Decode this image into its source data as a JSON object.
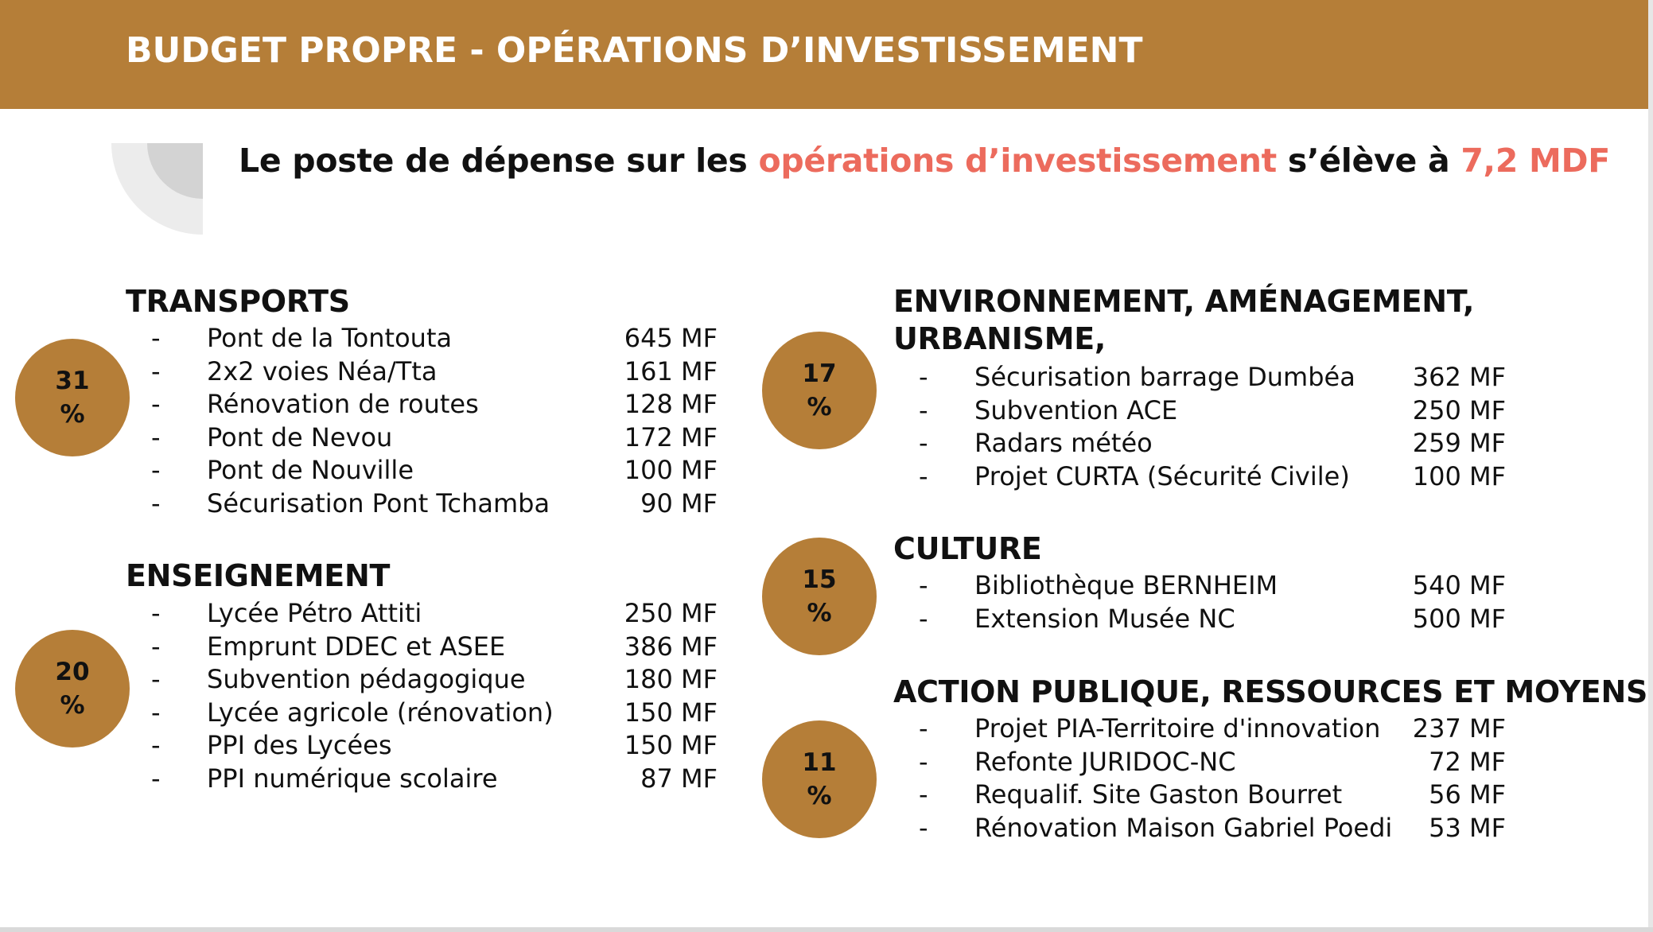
{
  "header": {
    "title": "BUDGET PROPRE - OPÉRATIONS D’INVESTISSEMENT"
  },
  "subtitle": {
    "prefix": "Le poste de dépense sur les ",
    "highlight": "opérations d’investissement",
    "middle": " s’élève à ",
    "total": "7,2 MDF"
  },
  "colors": {
    "accent": "#b57e38",
    "highlight": "#ec6b5d"
  },
  "sections": [
    {
      "title": "TRANSPORTS",
      "percent": "31",
      "percent_sign": "%",
      "items": [
        {
          "dash": "-",
          "label": "Pont de la Tontouta",
          "amount": "645 MF"
        },
        {
          "dash": "-",
          "label": "2x2 voies Néa/Tta",
          "amount": "161 MF"
        },
        {
          "dash": "-",
          "label": "Rénovation de routes",
          "amount": "128 MF"
        },
        {
          "dash": "-",
          "label": "Pont de Nevou",
          "amount": "172 MF"
        },
        {
          "dash": "-",
          "label": "Pont de Nouville",
          "amount": "100 MF"
        },
        {
          "dash": "-",
          "label": "Sécurisation Pont Tchamba",
          "amount": "90 MF"
        }
      ]
    },
    {
      "title": "ENSEIGNEMENT",
      "percent": "20",
      "percent_sign": "%",
      "items": [
        {
          "dash": "-",
          "label": "Lycée Pétro Attiti",
          "amount": "250 MF"
        },
        {
          "dash": "-",
          "label": "Emprunt DDEC et ASEE",
          "amount": "386 MF"
        },
        {
          "dash": "-",
          "label": "Subvention pédagogique",
          "amount": "180 MF"
        },
        {
          "dash": "-",
          "label": "Lycée agricole (rénovation)",
          "amount": "150 MF"
        },
        {
          "dash": "-",
          "label": "PPI des Lycées",
          "amount": "150 MF"
        },
        {
          "dash": "-",
          "label": "PPI numérique scolaire",
          "amount": "87 MF"
        }
      ]
    },
    {
      "title_line1": "ENVIRONNEMENT, AMÉNAGEMENT,",
      "title_line2": "URBANISME,",
      "percent": "17",
      "percent_sign": "%",
      "items": [
        {
          "dash": "-",
          "label": "Sécurisation barrage Dumbéa",
          "amount": "362 MF"
        },
        {
          "dash": "-",
          "label": "Subvention ACE",
          "amount": "250 MF"
        },
        {
          "dash": "-",
          "label": "Radars météo",
          "amount": "259 MF"
        },
        {
          "dash": "-",
          "label": "Projet CURTA (Sécurité Civile)",
          "amount": "100 MF"
        }
      ]
    },
    {
      "title": "CULTURE",
      "percent": "15",
      "percent_sign": "%",
      "items": [
        {
          "dash": "-",
          "label": "Bibliothèque BERNHEIM",
          "amount": "540 MF"
        },
        {
          "dash": "-",
          "label": "Extension Musée NC",
          "amount": "500 MF"
        }
      ]
    },
    {
      "title": "ACTION PUBLIQUE, RESSOURCES ET MOYENS",
      "percent": "11",
      "percent_sign": "%",
      "items": [
        {
          "dash": "-",
          "label": "Projet PIA-Territoire d'innovation",
          "amount": "237 MF"
        },
        {
          "dash": "-",
          "label": "Refonte JURIDOC-NC",
          "amount": "72 MF"
        },
        {
          "dash": "-",
          "label": "Requalif. Site Gaston Bourret",
          "amount": "56 MF"
        },
        {
          "dash": "-",
          "label": "Rénovation Maison Gabriel Poedi",
          "amount": "53 MF"
        }
      ]
    }
  ]
}
